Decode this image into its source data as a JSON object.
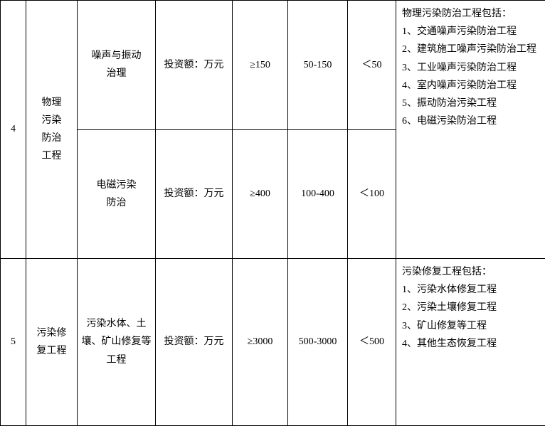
{
  "table": {
    "border_color": "#000000",
    "background_color": "#ffffff",
    "text_color": "#000000",
    "font_size": 14,
    "font_family": "SimSun",
    "columns": [
      "num",
      "category",
      "subcategory",
      "metric",
      "value1",
      "value2",
      "value3",
      "description"
    ],
    "rows": [
      {
        "num": "4",
        "category": "物理\n污染\n防治\n工程",
        "subcategory": "噪声与振动\n治理",
        "metric": "投资额：万元",
        "value1": "≥150",
        "value2": "50-150",
        "value3": "＜50",
        "description": "物理污染防治工程包括：\n1、交通噪声污染防治工程\n2、建筑施工噪声污染防治工程\n3、工业噪声污染防治工程\n4、室内噪声污染防治工程\n5、振动防治污染工程\n6、电磁污染防治工程"
      },
      {
        "subcategory": "电磁污染\n防治",
        "metric": "投资额：万元",
        "value1": "≥400",
        "value2": "100-400",
        "value3": "＜100"
      },
      {
        "num": "5",
        "category": "污染修\n复工程",
        "subcategory": "污染水体、土壤、矿山修复等工程",
        "metric": "投资额：万元",
        "value1": "≥3000",
        "value2": "500-3000",
        "value3": "＜500",
        "description": "污染修复工程包括：\n1、污染水体修复工程\n2、污染土壤修复工程\n3、矿山修复等工程\n4、其他生态恢复工程"
      }
    ]
  }
}
